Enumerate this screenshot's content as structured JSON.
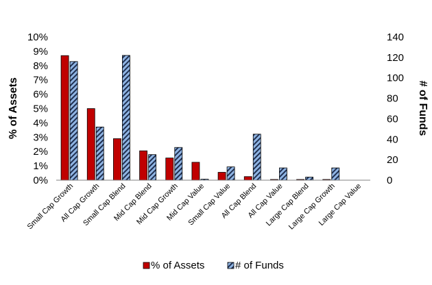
{
  "chart_data": {
    "type": "bar",
    "categories": [
      "Small Cap Growth",
      "All Cap Growth",
      "Small Cap Blend",
      "Mid Cap Blend",
      "Mid Cap Growth",
      "Mid Cap Value",
      "Small Cap Value",
      "All Cap Blend",
      "All Cap Value",
      "Large Cap Blend",
      "Large Cap Growth",
      "Large Cap Value"
    ],
    "series": [
      {
        "name": "% of Assets",
        "axis": "left",
        "color": "#c00000",
        "values": [
          8.7,
          5.0,
          2.9,
          2.05,
          1.55,
          1.25,
          0.55,
          0.25,
          0.05,
          0.05,
          0.05,
          0.0
        ]
      },
      {
        "name": "# of Funds",
        "axis": "right",
        "color": "#8fb4e3",
        "pattern": "diagonal-stripes",
        "values": [
          116,
          52,
          122,
          25,
          32,
          1,
          13,
          45,
          12,
          3,
          12,
          0
        ]
      }
    ],
    "ylabel": "% of Assets",
    "ylim": [
      0,
      10
    ],
    "yticks": [
      "0%",
      "1%",
      "2%",
      "3%",
      "4%",
      "5%",
      "6%",
      "7%",
      "8%",
      "9%",
      "10%"
    ],
    "y2label": "# of Funds",
    "y2lim": [
      0,
      140
    ],
    "y2ticks": [
      "0",
      "20",
      "40",
      "60",
      "80",
      "100",
      "120",
      "140"
    ],
    "grid": false,
    "legend_position": "bottom"
  }
}
